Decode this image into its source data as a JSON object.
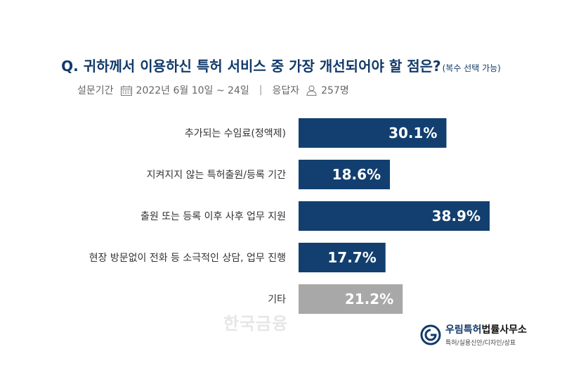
{
  "header": {
    "question": "Q. 귀하께서 이용하신 특허 서비스 중 가장 개선되어야 할 점은?",
    "question_note": "(복수 선택 가능)"
  },
  "survey_meta": {
    "period_label": "설문기간",
    "period_value": "2022년 6월 10일 ~ 24일",
    "respondents_label": "응답자",
    "respondents_value": "257명",
    "separator": "|"
  },
  "chart_data": {
    "type": "bar",
    "orientation": "horizontal",
    "categories": [
      "추가되는 수임료(정액제)",
      "지켜지지 않는 특허출원/등록 기간",
      "출원 또는 등록 이후 사후 업무 지원",
      "현장 방문없이 전화 등 소극적인 상담, 업무 진행",
      "기타"
    ],
    "values": [
      30.1,
      18.6,
      38.9,
      17.7,
      21.2
    ],
    "value_labels": [
      "30.1%",
      "18.6%",
      "38.9%",
      "17.7%",
      "21.2%"
    ],
    "unit": "%",
    "xlim": [
      0,
      60
    ],
    "grid": false,
    "colors": [
      "#123f6f",
      "#123f6f",
      "#123f6f",
      "#123f6f",
      "#a8a8a8"
    ]
  },
  "watermark": {
    "text": "한국금융"
  },
  "logo": {
    "name_blue": "우림특허",
    "name_dark": "법률사무소",
    "tagline": "특허/실용신안/디자인/상표",
    "ring_text": "WOORIM"
  },
  "icons": [
    "calendar-icon",
    "person-icon",
    "logo-emblem-icon"
  ]
}
